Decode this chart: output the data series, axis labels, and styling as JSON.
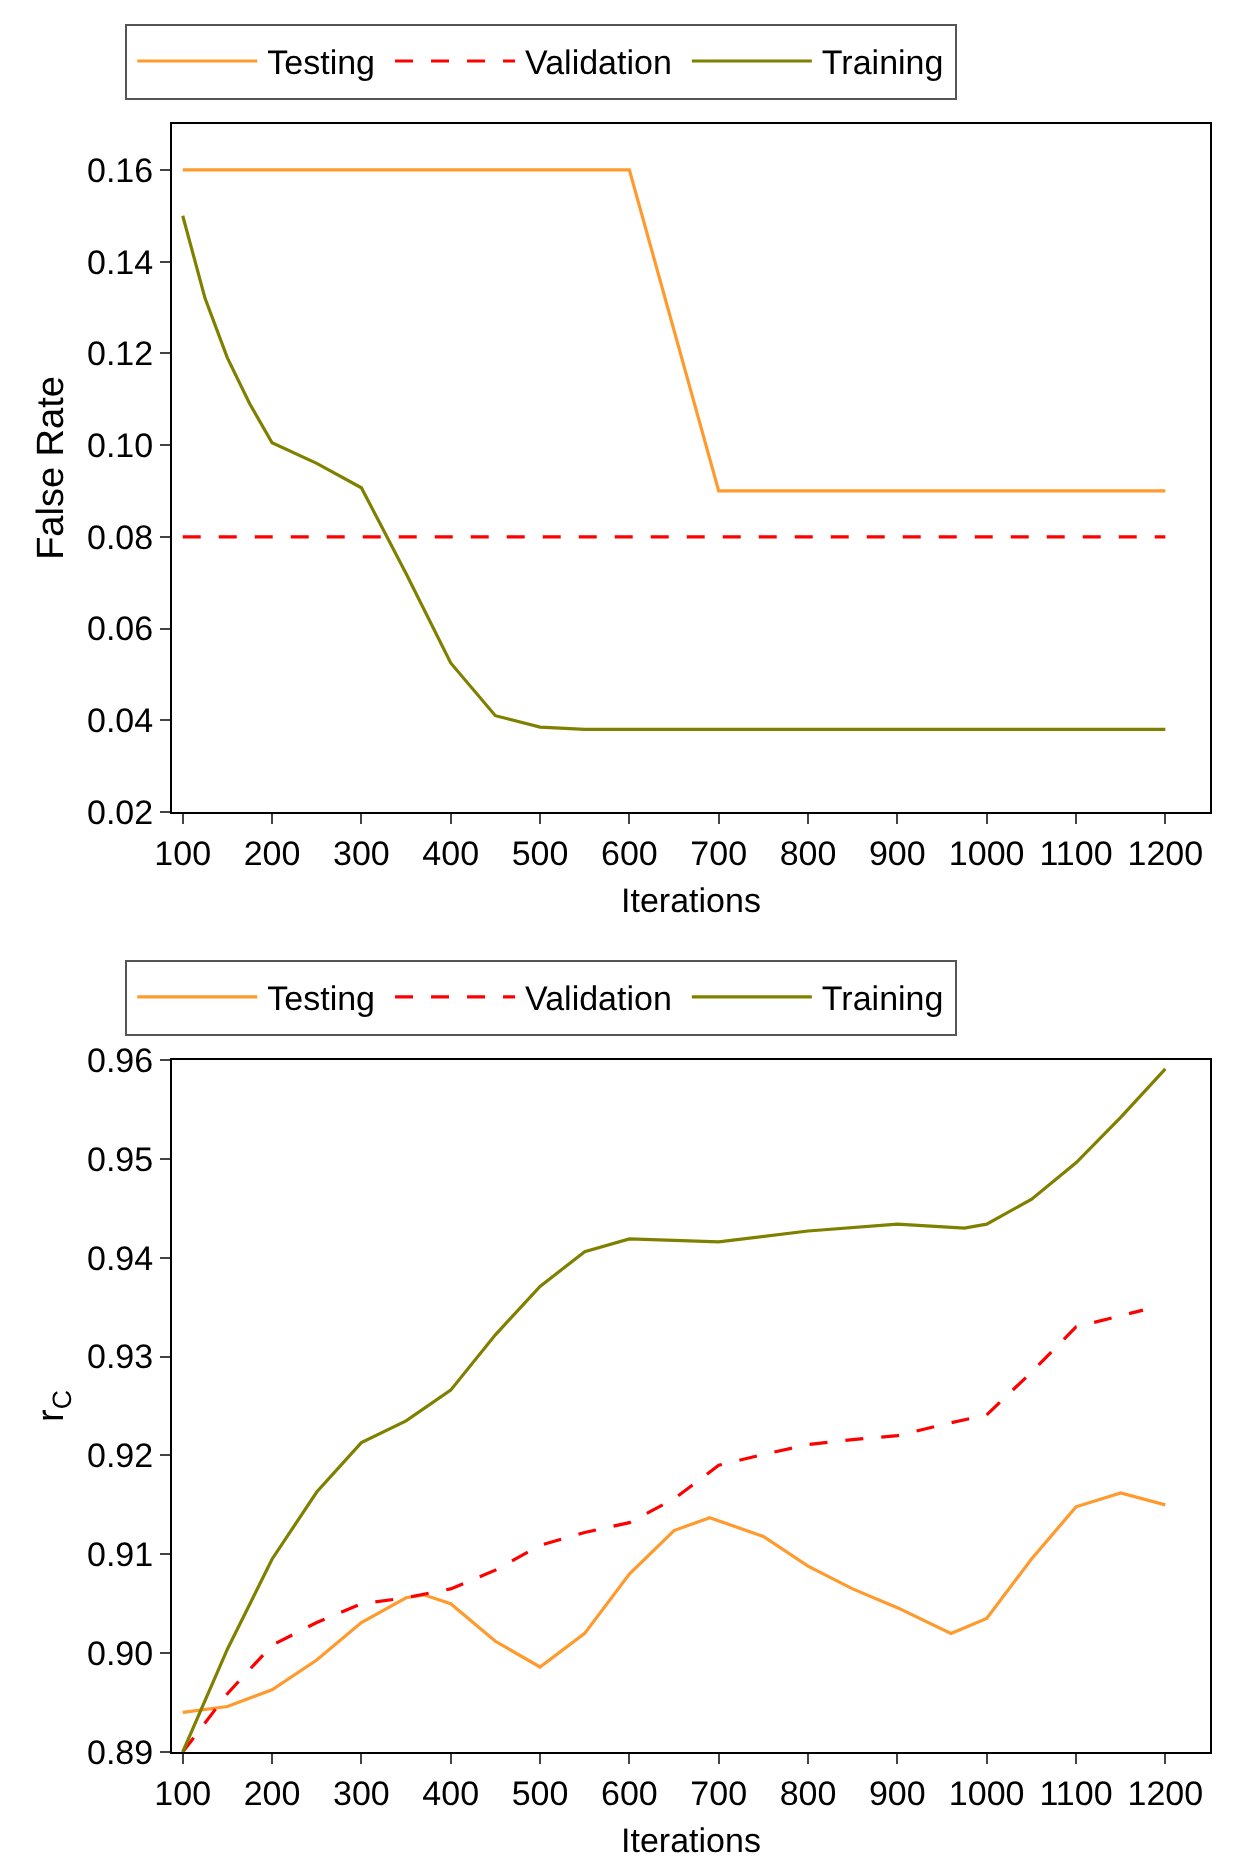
{
  "chart_data": [
    {
      "type": "line",
      "xlabel": "Iterations",
      "ylabel": "False Rate",
      "xlim": [
        88,
        1250
      ],
      "xticks": [
        100,
        200,
        300,
        400,
        500,
        600,
        700,
        800,
        900,
        1000,
        1100,
        1200
      ],
      "ylim": [
        0.02,
        0.17
      ],
      "yticks": [
        0.02,
        0.04,
        0.06,
        0.08,
        {
          "value": 0.1,
          "label": "0.10"
        },
        0.12,
        0.14,
        0.16
      ],
      "legend": "top",
      "grid": false,
      "marker": "none",
      "series": [
        {
          "name": "Testing",
          "color": "#ff9a2e",
          "line_style": "solid",
          "x": [
            100,
            600,
            700,
            1200
          ],
          "values": [
            0.16,
            0.16,
            0.09,
            0.09
          ]
        },
        {
          "name": "Validation",
          "color": "#ff0000",
          "line_style": "dashed",
          "x": [
            100,
            1200
          ],
          "values": [
            0.08,
            0.08
          ]
        },
        {
          "name": "Training",
          "color": "#808000",
          "line_style": "solid",
          "x": [
            100,
            125,
            150,
            175,
            200,
            250,
            300,
            350,
            400,
            450,
            500,
            550,
            600,
            1200
          ],
          "values": [
            0.15,
            0.132,
            0.119,
            0.109,
            0.1005,
            0.096,
            0.0907,
            0.072,
            0.0525,
            0.041,
            0.0385,
            0.038,
            0.038,
            0.038
          ]
        }
      ]
    },
    {
      "type": "line",
      "xlabel": "Iterations",
      "ylabel": "r$_{C}$",
      "xlim": [
        88,
        1250
      ],
      "xticks": [
        100,
        200,
        300,
        400,
        500,
        600,
        700,
        800,
        900,
        1000,
        1100,
        1200
      ],
      "ylim": [
        0.89,
        0.96
      ],
      "yticks": [
        0.89,
        {
          "value": 0.9,
          "label": "0.90"
        },
        0.91,
        0.92,
        0.93,
        0.94,
        0.95,
        0.96
      ],
      "legend": "top",
      "grid": false,
      "marker": "none",
      "series": [
        {
          "name": "Testing",
          "color": "#ff9a2e",
          "line_style": "solid",
          "x": [
            100,
            150,
            200,
            250,
            300,
            350,
            370,
            400,
            450,
            500,
            550,
            600,
            650,
            690,
            750,
            800,
            850,
            900,
            960,
            1000,
            1050,
            1100,
            1150,
            1200
          ],
          "values": [
            0.894,
            0.8946,
            0.8963,
            0.8993,
            0.9031,
            0.9056,
            0.9059,
            0.905,
            0.9012,
            0.8986,
            0.902,
            0.908,
            0.9124,
            0.9137,
            0.9118,
            0.9088,
            0.9065,
            0.9046,
            0.902,
            0.9035,
            0.9095,
            0.9148,
            0.9162,
            0.915
          ]
        },
        {
          "name": "Validation",
          "color": "#ff0000",
          "line_style": "dashed",
          "x": [
            100,
            150,
            200,
            250,
            300,
            350,
            400,
            450,
            500,
            550,
            600,
            650,
            700,
            750,
            800,
            850,
            900,
            950,
            1000,
            1050,
            1100,
            1175
          ],
          "values": [
            0.89,
            0.8959,
            0.9008,
            0.9031,
            0.905,
            0.9056,
            0.9065,
            0.9084,
            0.9109,
            0.9122,
            0.9132,
            0.9156,
            0.919,
            0.9201,
            0.9211,
            0.9216,
            0.922,
            0.9231,
            0.9241,
            0.9284,
            0.933,
            0.9347
          ]
        },
        {
          "name": "Training",
          "color": "#808000",
          "line_style": "solid",
          "x": [
            100,
            150,
            200,
            250,
            300,
            350,
            400,
            450,
            500,
            550,
            600,
            700,
            800,
            900,
            975,
            1000,
            1050,
            1100,
            1150,
            1200
          ],
          "values": [
            0.89,
            0.9004,
            0.9095,
            0.9163,
            0.9213,
            0.9235,
            0.9266,
            0.9322,
            0.9371,
            0.9406,
            0.9419,
            0.9416,
            0.9427,
            0.9434,
            0.943,
            0.9434,
            0.9459,
            0.9496,
            0.9542,
            0.9591
          ]
        }
      ]
    }
  ]
}
